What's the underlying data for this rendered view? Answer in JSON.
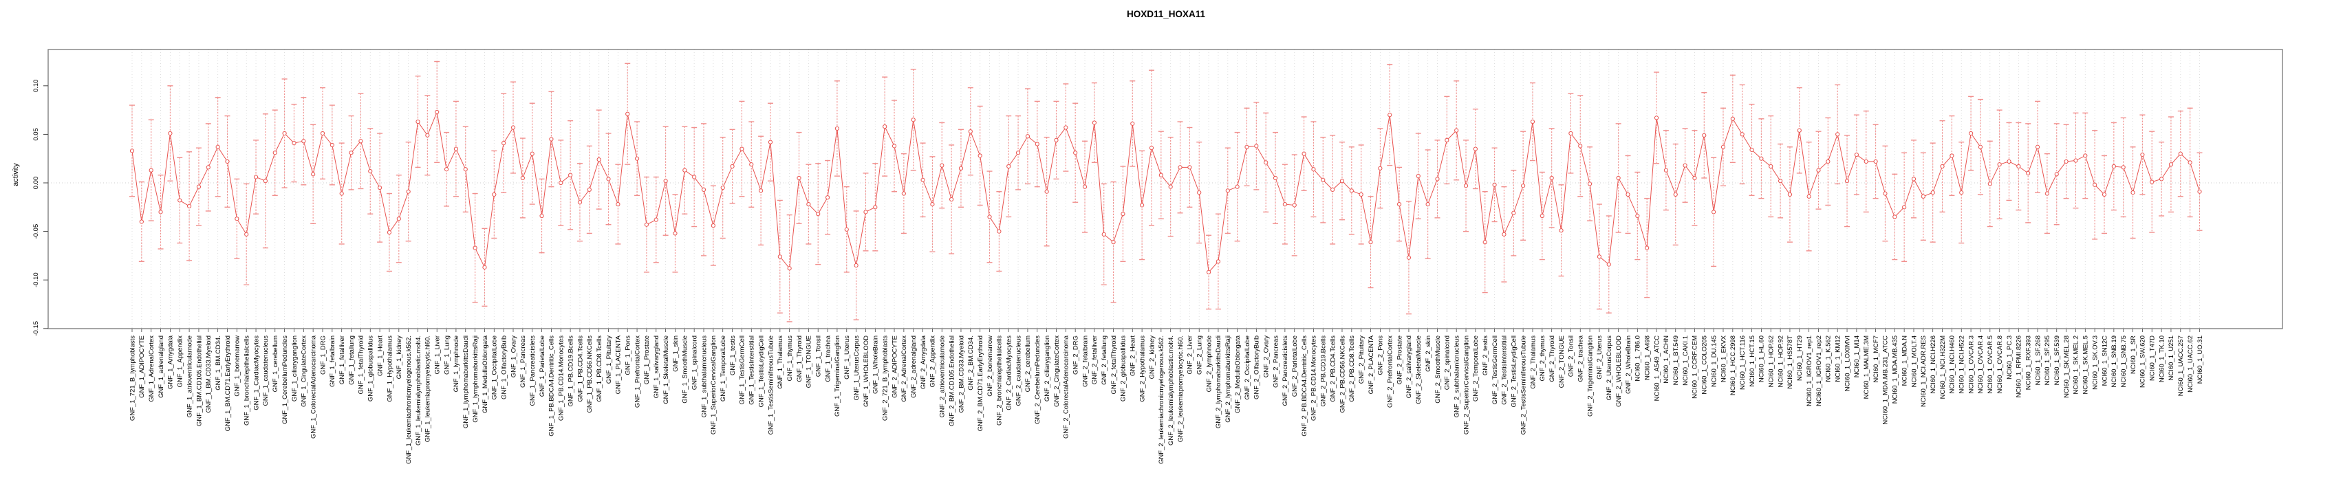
{
  "page": {
    "background": "#ffffff"
  },
  "chart_data": {
    "type": "scatter",
    "title": "HOXD11_HOXA11",
    "ylabel": "activity",
    "xlabel": "",
    "series_name": "activity",
    "error_bars": true,
    "legend": "none",
    "ylim": [
      -0.15,
      0.137
    ],
    "yticks": [
      0.1,
      0.05,
      0.0,
      -0.05,
      -0.1,
      -0.15
    ],
    "ytick_labels": [
      "0.10",
      "0.05",
      "0.00",
      "-0.05",
      "-0.10",
      "-0.15"
    ],
    "grid": {
      "vertical_per_category": true,
      "horizontal_zero_line": true
    },
    "colors": {
      "series": "#e9534f",
      "error_bar": "#f18f8d",
      "grid": "#d9d9d9",
      "zero_line": "#cccccc",
      "box": "#808080",
      "tick": "#444444",
      "text": "#000000"
    },
    "categories": [
      "GNF_1_721_B_lymphoblasts",
      "GNF_1_ADIPOCYTE",
      "GNF_1_AdrenalCortex",
      "GNF_1_adrenalgland",
      "GNF_1_Amygdala",
      "GNF_1_Appendix",
      "GNF_1_atrioventricularnode",
      "GNF_1_BM.CD105.Endothelial",
      "GNF_1_BM.CD33.Myeloid",
      "GNF_1_BM.CD34.",
      "GNF_1_BM.CD71.EarlyErythroid",
      "GNF_1_bonemarrow",
      "GNF_1_bronchialepithelialcells",
      "GNF_1_CardiacMyocytes",
      "GNF_1_caudatenucleus",
      "GNF_1_cerebellum",
      "GNF_1_CerebellumPeduncles",
      "GNF_1_ciliaryganglion",
      "GNF_1_CingulateCortex",
      "GNF_1_ColorectalAdenocarcinoma",
      "GNF_1_DRG",
      "GNF_1_fetalbrain",
      "GNF_1_fetalliver",
      "GNF_1_fetallung",
      "GNF_1_fetalThyroid",
      "GNF_1_globuspallidus",
      "GNF_1_Heart",
      "GNF_1_Hypothalamus",
      "GNF_1_kidney",
      "GNF_1_leukemiachronicmyelogenous.k562.",
      "GNF_1_leukemialymphoblastic.molt4.",
      "GNF_1_leukemiapromyelocytic.hl60.",
      "GNF_1_Liver",
      "GNF_1_Lung",
      "GNF_1_lymphnode",
      "GNF_1_lymphomaburkittsDaudi",
      "GNF_1_lymphomaburkittsRaji",
      "GNF_1_MedullaOblongata",
      "GNF_1_OccipitalLobe",
      "GNF_1_OlfactoryBulb",
      "GNF_1_Ovary",
      "GNF_1_Pancreas",
      "GNF_1_Pancreaticislets",
      "GNF_1_ParietalLobe",
      "GNF_1_PB.BDCA4.Dentritic_Cells",
      "GNF_1_PB.CD14.Monocytes",
      "GNF_1_PB.CD19.Bcells",
      "GNF_1_PB.CD4.Tcells",
      "GNF_1_PB.CD56.NKCells",
      "GNF_1_PB.CD8.Tcells",
      "GNF_1_Pituitary",
      "GNF_1_PLACENTA",
      "GNF_1_Pons",
      "GNF_1_PrefrontalCortex",
      "GNF_1_Prostate",
      "GNF_1_salivarygland",
      "GNF_1_SkeletalMuscle",
      "GNF_1_skin",
      "GNF_1_SmoothMuscle",
      "GNF_1_spinalcord",
      "GNF_1_subthalamicnucleus",
      "GNF_1_SuperiorCervicalGanglion",
      "GNF_1_TemporalLobe",
      "GNF_1_testis",
      "GNF_1_TestisGermCell",
      "GNF_1_TestisInterstitial",
      "GNF_1_TestisLeydigCell",
      "GNF_1_TestisSeminiferousTubule",
      "GNF_1_Thalamus",
      "GNF_1_thymus",
      "GNF_1_Thyroid",
      "GNF_1_TONGUE",
      "GNF_1_Tonsil",
      "GNF_1_trachea",
      "GNF_1_TrigeminalGanglion",
      "GNF_1_Uterus",
      "GNF_1_UterusCorpus",
      "GNF_1_WHOLEBLOOD",
      "GNF_1_WholeBrain",
      "GNF_2_721_B_lymphoblasts",
      "GNF_2_ADIPOCYTE",
      "GNF_2_AdrenalCortex",
      "GNF_2_adrenalgland",
      "GNF_2_Amygdala",
      "GNF_2_Appendix",
      "GNF_2_atrioventricularnode",
      "GNF_2_BM.CD105.Endothelial",
      "GNF_2_BM.CD33.Myeloid",
      "GNF_2_BM.CD34.",
      "GNF_2_BM.CD71.EarlyErythroid",
      "GNF_2_bonemarrow",
      "GNF_2_bronchialepithelialcells",
      "GNF_2_CardiacMyocytes",
      "GNF_2_caudatenucleus",
      "GNF_2_cerebellum",
      "GNF_2_CerebellumPeduncles",
      "GNF_2_ciliaryganglion",
      "GNF_2_CingulateCortex",
      "GNF_2_ColorectalAdenocarcinoma",
      "GNF_2_DRG",
      "GNF_2_fetalbrain",
      "GNF_2_fetalliver",
      "GNF_2_fetallung",
      "GNF_2_fetalThyroid",
      "GNF_2_globuspallidus",
      "GNF_2_Heart",
      "GNF_2_Hypothalamus",
      "GNF_2_kidney",
      "GNF_2_leukemiachronicmyelogenous.k562.",
      "GNF_2_leukemialymphoblastic.molt4.",
      "GNF_2_leukemiapromyelocytic.hl60.",
      "GNF_2_Liver",
      "GNF_2_Lung",
      "GNF_2_lymphnode",
      "GNF_2_lymphomaburkittsDaudi",
      "GNF_2_lymphomaburkittsRaji",
      "GNF_2_MedullaOblongata",
      "GNF_2_OccipitalLobe",
      "GNF_2_OlfactoryBulb",
      "GNF_2_Ovary",
      "GNF_2_Pancreas",
      "GNF_2_Pancreaticislets",
      "GNF_2_ParietalLobe",
      "GNF_2_PB.BDCA4.Dentritic_Cells",
      "GNF_2_PB.CD14.Monocytes",
      "GNF_2_PB.CD19.Bcells",
      "GNF_2_PB.CD4.Tcells",
      "GNF_2_PB.CD56.NKCells",
      "GNF_2_PB.CD8.Tcells",
      "GNF_2_Pituitary",
      "GNF_2_PLACENTA",
      "GNF_2_Pons",
      "GNF_2_PrefrontalCortex",
      "GNF_2_Prostate",
      "GNF_2_salivarygland",
      "GNF_2_SkeletalMuscle",
      "GNF_2_skin",
      "GNF_2_SmoothMuscle",
      "GNF_2_spinalcord",
      "GNF_2_subthalamicnucleus",
      "GNF_2_SuperiorCervicalGanglion",
      "GNF_2_TemporalLobe",
      "GNF_2_testis",
      "GNF_2_TestisGermCell",
      "GNF_2_TestisInterstitial",
      "GNF_2_TestisLeydigCell",
      "GNF_2_TestisSeminiferousTubule",
      "GNF_2_Thalamus",
      "GNF_2_thymus",
      "GNF_2_Thyroid",
      "GNF_2_TONGUE",
      "GNF_2_Tonsil",
      "GNF_2_trachea",
      "GNF_2_TrigeminalGanglion",
      "GNF_2_Uterus",
      "GNF_2_UterusCorpus",
      "GNF_2_WHOLEBLOOD",
      "GNF_2_WholeBrain",
      "NCI60_1_786.0",
      "NCI60_1_A498",
      "NCI60_1_A549_ATCC",
      "NCI60_1_ACHN",
      "NCI60_1_BT.549",
      "NCI60_1_CAKI.1",
      "NCI60_1_CCRF.CEM",
      "NCI60_1_COLO205",
      "NCI60_1_DU.145",
      "NCI60_1_EKVX",
      "NCI60_1_HCC.2998",
      "NCI60_1_HCT.116",
      "NCI60_1_HCT.15",
      "NCI60_1_HL.60",
      "NCI60_1_HOP.62",
      "NCI60_1_HOP.92",
      "NCI60_1_HS578T",
      "NCI60_1_HT29",
      "NCI60_1_IGROV1_rep1",
      "NCI60_1_IGROV1_rep2",
      "NCI60_1_K.562",
      "NCI60_1_KM12",
      "NCI60_1_LOXIMVI",
      "NCI60_1_M14",
      "NCI60_1_MALME.3M",
      "NCI60_1_MCF7",
      "NCI60_1_MDA.MB.231_ATCC",
      "NCI60_1_MDA.MB.435",
      "NCI60_1_MDA.N",
      "NCI60_1_MOLT.4",
      "NCI60_1_NCI.ADR.RES",
      "NCI60_1_NCI.H226",
      "NCI60_1_NCI.H322M",
      "NCI60_1_NCI.H460",
      "NCI60_1_NCI.H522",
      "NCI60_1_OVCAR.3",
      "NCI60_1_OVCAR.4",
      "NCI60_1_OVCAR.5",
      "NCI60_1_OVCAR.8",
      "NCI60_1_PC.3",
      "NCI60_1_RPMI.8226",
      "NCI60_1_RXF.393",
      "NCI60_1_SF.268",
      "NCI60_1_SF.295",
      "NCI60_1_SF.539",
      "NCI60_1_SK.MEL.28",
      "NCI60_1_SK.MEL.2",
      "NCI60_1_SK.MEL.5",
      "NCI60_1_SK.OV.3",
      "NCI60_1_SN12C",
      "NCI60_1_SNB.19",
      "NCI60_1_SNB.75",
      "NCI60_1_SR",
      "NCI60_1_SW.620",
      "NCI60_1_T47D",
      "NCI60_1_TK.10",
      "NCI60_1_U251",
      "NCI60_1_UACC.257",
      "NCI60_1_UACC.62",
      "NCI60_1_UO.31"
    ],
    "values": [
      0.033,
      -0.04,
      0.013,
      -0.03,
      0.051,
      -0.018,
      -0.024,
      -0.004,
      0.016,
      0.037,
      0.022,
      -0.037,
      -0.053,
      0.006,
      0.002,
      0.031,
      0.051,
      0.041,
      0.043,
      0.009,
      0.051,
      0.039,
      -0.011,
      0.031,
      0.043,
      0.012,
      -0.005,
      -0.051,
      -0.037,
      -0.009,
      0.063,
      0.049,
      0.073,
      0.014,
      0.035,
      0.014,
      -0.067,
      -0.087,
      -0.012,
      0.041,
      0.057,
      0.005,
      0.03,
      -0.034,
      0.045,
      0.0,
      0.008,
      -0.02,
      -0.007,
      0.024,
      0.004,
      -0.022,
      0.071,
      0.025,
      -0.043,
      -0.038,
      0.002,
      -0.052,
      0.013,
      0.006,
      -0.007,
      -0.044,
      -0.005,
      0.017,
      0.035,
      0.019,
      -0.008,
      0.042,
      -0.076,
      -0.088,
      0.005,
      -0.022,
      -0.032,
      -0.015,
      0.056,
      -0.048,
      -0.085,
      -0.03,
      -0.025,
      0.058,
      0.038,
      -0.011,
      0.065,
      0.003,
      -0.022,
      0.018,
      -0.017,
      0.015,
      0.053,
      0.028,
      -0.035,
      -0.05,
      0.017,
      0.031,
      0.048,
      0.04,
      -0.009,
      0.044,
      0.057,
      0.031,
      -0.004,
      0.062,
      -0.053,
      -0.061,
      -0.032,
      0.061,
      -0.023,
      0.036,
      0.008,
      -0.004,
      0.016,
      0.016,
      -0.01,
      -0.092,
      -0.081,
      -0.008,
      -0.004,
      0.037,
      0.038,
      0.021,
      0.005,
      -0.022,
      -0.023,
      0.03,
      0.014,
      0.003,
      -0.007,
      0.002,
      -0.008,
      -0.012,
      -0.061,
      0.015,
      0.07,
      -0.022,
      -0.077,
      0.007,
      -0.022,
      0.004,
      0.044,
      0.054,
      -0.003,
      0.035,
      -0.061,
      -0.002,
      -0.053,
      -0.031,
      -0.003,
      0.063,
      -0.034,
      0.005,
      -0.049,
      0.051,
      0.038,
      -0.001,
      -0.076,
      -0.084,
      0.005,
      -0.012,
      -0.034,
      -0.067,
      0.067,
      0.013,
      -0.012,
      0.018,
      0.005,
      0.049,
      -0.03,
      0.037,
      0.066,
      0.05,
      0.034,
      0.025,
      0.017,
      0.002,
      -0.012,
      0.054,
      -0.014,
      0.013,
      0.022,
      0.05,
      0.002,
      0.029,
      0.022,
      0.022,
      -0.011,
      -0.035,
      -0.025,
      0.004,
      -0.014,
      -0.01,
      0.017,
      0.028,
      -0.01,
      0.051,
      0.037,
      -0.001,
      0.019,
      0.022,
      0.017,
      0.01,
      0.037,
      -0.011,
      0.009,
      0.022,
      0.023,
      0.028,
      -0.002,
      -0.012,
      0.017,
      0.016,
      -0.01,
      0.029,
      0.001,
      0.004,
      0.019,
      0.03,
      0.021,
      -0.009
    ],
    "error_half_widths": [
      0.047,
      0.041,
      0.052,
      0.038,
      0.049,
      0.044,
      0.056,
      0.04,
      0.045,
      0.051,
      0.047,
      0.041,
      0.052,
      0.038,
      0.069,
      0.044,
      0.056,
      0.04,
      0.045,
      0.051,
      0.047,
      0.041,
      0.052,
      0.038,
      0.049,
      0.044,
      0.056,
      0.04,
      0.045,
      0.051,
      0.047,
      0.041,
      0.052,
      0.038,
      0.049,
      0.044,
      0.056,
      0.04,
      0.045,
      0.051,
      0.047,
      0.041,
      0.052,
      0.038,
      0.049,
      0.044,
      0.056,
      0.04,
      0.045,
      0.051,
      0.047,
      0.041,
      0.052,
      0.038,
      0.049,
      0.044,
      0.056,
      0.04,
      0.045,
      0.051,
      0.068,
      0.041,
      0.052,
      0.038,
      0.049,
      0.044,
      0.056,
      0.04,
      0.058,
      0.055,
      0.047,
      0.041,
      0.052,
      0.038,
      0.049,
      0.044,
      0.056,
      0.04,
      0.045,
      0.051,
      0.047,
      0.041,
      0.052,
      0.038,
      0.049,
      0.044,
      0.056,
      0.04,
      0.045,
      0.051,
      0.047,
      0.041,
      0.052,
      0.038,
      0.049,
      0.044,
      0.056,
      0.04,
      0.045,
      0.051,
      0.047,
      0.041,
      0.052,
      0.062,
      0.049,
      0.044,
      0.056,
      0.08,
      0.045,
      0.051,
      0.047,
      0.041,
      0.052,
      0.038,
      0.049,
      0.044,
      0.056,
      0.04,
      0.045,
      0.051,
      0.047,
      0.041,
      0.052,
      0.038,
      0.049,
      0.044,
      0.056,
      0.04,
      0.045,
      0.051,
      0.047,
      0.041,
      0.052,
      0.038,
      0.058,
      0.044,
      0.056,
      0.04,
      0.045,
      0.051,
      0.047,
      0.041,
      0.052,
      0.038,
      0.049,
      0.044,
      0.056,
      0.04,
      0.045,
      0.051,
      0.047,
      0.041,
      0.052,
      0.038,
      0.054,
      0.05,
      0.056,
      0.04,
      0.045,
      0.051,
      0.047,
      0.041,
      0.052,
      0.038,
      0.049,
      0.044,
      0.056,
      0.04,
      0.045,
      0.051,
      0.047,
      0.041,
      0.052,
      0.038,
      0.049,
      0.044,
      0.056,
      0.04,
      0.045,
      0.051,
      0.047,
      0.041,
      0.052,
      0.038,
      0.049,
      0.044,
      0.056,
      0.04,
      0.045,
      0.051,
      0.047,
      0.041,
      0.052,
      0.038,
      0.049,
      0.044,
      0.056,
      0.04,
      0.045,
      0.051,
      0.047,
      0.041,
      0.052,
      0.038,
      0.049,
      0.044,
      0.056,
      0.04,
      0.045,
      0.051,
      0.047,
      0.041,
      0.052,
      0.038,
      0.049,
      0.044,
      0.056,
      0.04
    ]
  }
}
